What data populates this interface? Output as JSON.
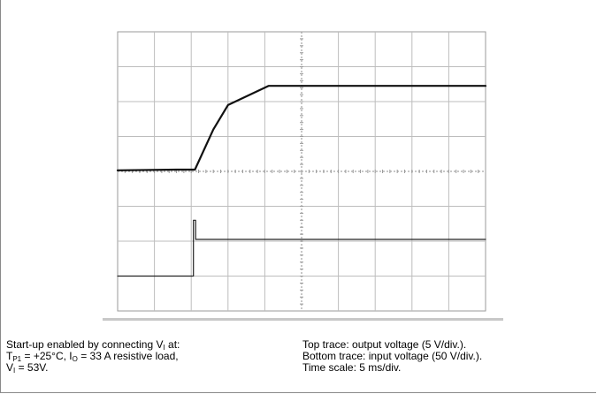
{
  "chart_data": {
    "type": "line",
    "title": "",
    "xlabel": "",
    "ylabel": "",
    "grid": true,
    "divisions": {
      "x": 10,
      "y": 8
    },
    "x_unit": "div",
    "y_unit": "div",
    "series": [
      {
        "name": "output voltage",
        "color": "#111111",
        "stroke": 2.2,
        "x": [
          0,
          1.6,
          2.1,
          2.6,
          3.0,
          4.1,
          5.0,
          7.0,
          10.0
        ],
        "y": [
          4.03,
          4.05,
          4.05,
          5.2,
          5.9,
          6.45,
          6.45,
          6.45,
          6.45
        ]
      },
      {
        "name": "input voltage",
        "color": "#222222",
        "stroke": 1.2,
        "x": [
          0,
          2.06,
          2.06,
          2.12,
          2.12,
          10.0
        ],
        "y": [
          1.0,
          1.0,
          2.6,
          2.6,
          2.05,
          2.05
        ]
      }
    ]
  },
  "caption": {
    "left": {
      "line1_pre": "Start-up enabled by connecting V",
      "line1_sub": "I",
      "line1_post": " at:",
      "line2_a": "T",
      "line2_a_sub": "P1",
      "line2_b": " = +25°C, I",
      "line2_b_sub": "O",
      "line2_c": " = 33 A resistive load,",
      "line3_a": "V",
      "line3_a_sub": "I",
      "line3_b": " = 53V."
    },
    "right": {
      "line1": "Top trace: output voltage (5 V/div.).",
      "line2": "Bottom trace: input voltage (50 V/div.).",
      "line3": "Time scale: 5 ms/div."
    }
  }
}
